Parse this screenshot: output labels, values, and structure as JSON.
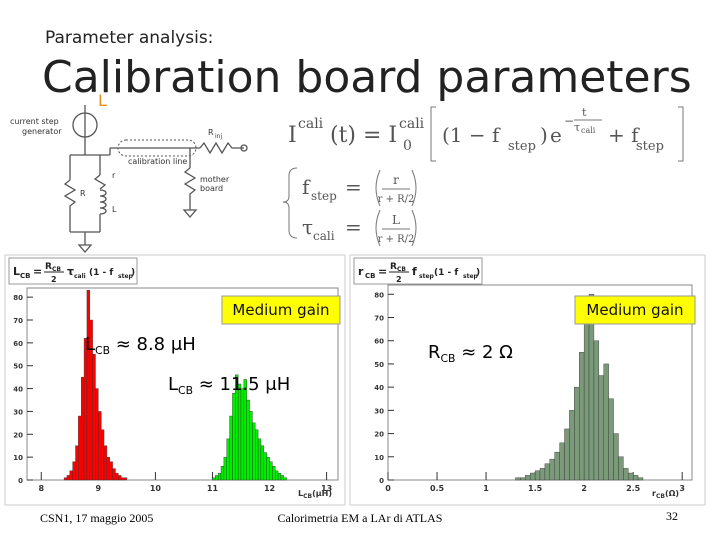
{
  "header": {
    "section": "Parameter analysis:",
    "title": "Calibration board parameters"
  },
  "circuit": {
    "labels": [
      "current step",
      "generator",
      "calibration line",
      "R",
      "inj",
      "r",
      "R",
      "L",
      "mother",
      "board",
      "L"
    ]
  },
  "formula": [
    "I",
    "cali",
    "(t) = I",
    "0",
    "cali",
    "(1 − f",
    "step",
    ")",
    "e",
    "−",
    "t",
    "τ",
    "cali",
    "+ f",
    "step",
    "f",
    "step",
    "=",
    "r",
    "r + R/2",
    "τ",
    "cali",
    "=",
    "L",
    "r + R/2"
  ],
  "charts": [
    {
      "type": "histogram",
      "box": [
        "L",
        "CB",
        "=",
        "R",
        "CB",
        "2",
        "τ",
        "cali",
        "(1 - f",
        "step",
        ")"
      ],
      "badge": "Medium gain",
      "annotations": [
        [
          "L",
          "CB",
          " ≈ 8.8 μH"
        ],
        [
          "L",
          "CB",
          " ≈ 11.5 μH"
        ]
      ],
      "xlabel": [
        "L",
        "CB",
        "(μH)"
      ],
      "xlim": [
        7.75,
        13.2
      ],
      "ylim": [
        0,
        84
      ],
      "xticks": [
        8,
        9,
        10,
        11,
        12,
        13
      ],
      "yticks": [
        0,
        10,
        20,
        30,
        40,
        50,
        60,
        70,
        80
      ],
      "series": [
        {
          "color": "#ff0000",
          "bins": [
            8.4,
            8.45,
            8.5,
            8.55,
            8.6,
            8.65,
            8.7,
            8.75,
            8.8,
            8.85,
            8.9,
            8.95,
            9.0,
            9.05,
            9.1,
            9.15,
            9.2,
            9.25,
            9.3,
            9.35,
            9.4,
            9.45,
            9.5
          ],
          "counts": [
            1,
            2,
            4,
            8,
            15,
            28,
            45,
            62,
            83,
            70,
            55,
            40,
            30,
            22,
            15,
            10,
            8,
            5,
            3,
            2,
            1,
            1
          ]
        },
        {
          "color": "#00ee00",
          "bins": [
            11.0,
            11.05,
            11.1,
            11.15,
            11.2,
            11.25,
            11.3,
            11.35,
            11.4,
            11.45,
            11.5,
            11.55,
            11.6,
            11.65,
            11.7,
            11.75,
            11.8,
            11.85,
            11.9,
            11.95,
            12.0,
            12.05,
            12.1,
            12.15,
            12.2,
            12.25,
            12.3
          ],
          "counts": [
            1,
            2,
            3,
            6,
            10,
            18,
            28,
            38,
            46,
            42,
            40,
            44,
            35,
            30,
            25,
            22,
            18,
            15,
            12,
            10,
            8,
            6,
            4,
            3,
            2,
            1
          ]
        }
      ]
    },
    {
      "type": "histogram",
      "box": [
        "r",
        "CB",
        "=",
        "R",
        "CB",
        "2",
        "f",
        "step",
        "(1 - f",
        "step",
        ")"
      ],
      "badge": "Medium gain",
      "annotations": [
        [
          "R",
          "CB",
          " ≈ 2 Ω"
        ]
      ],
      "xlabel": [
        "r",
        "CB",
        "(Ω)"
      ],
      "xlim": [
        0,
        3.1
      ],
      "ylim": [
        0,
        84
      ],
      "xticks": [
        0,
        0.5,
        1,
        1.5,
        2,
        2.5,
        3
      ],
      "yticks": [
        0,
        10,
        20,
        30,
        40,
        50,
        60,
        70,
        80
      ],
      "series": [
        {
          "color": "#7a9a7a",
          "bins": [
            1.3,
            1.35,
            1.4,
            1.45,
            1.5,
            1.55,
            1.6,
            1.65,
            1.7,
            1.75,
            1.8,
            1.85,
            1.9,
            1.95,
            2.0,
            2.05,
            2.1,
            2.15,
            2.2,
            2.25,
            2.3,
            2.35,
            2.4,
            2.45,
            2.5,
            2.55,
            2.6
          ],
          "counts": [
            1,
            1,
            2,
            3,
            4,
            5,
            7,
            9,
            12,
            16,
            22,
            30,
            40,
            55,
            68,
            80,
            60,
            45,
            50,
            35,
            20,
            10,
            5,
            3,
            2,
            1
          ]
        }
      ]
    }
  ],
  "footer": {
    "left": "CSN1, 17 maggio 2005",
    "center": "Calorimetria EM a LAr di ATLAS",
    "page": "32"
  }
}
